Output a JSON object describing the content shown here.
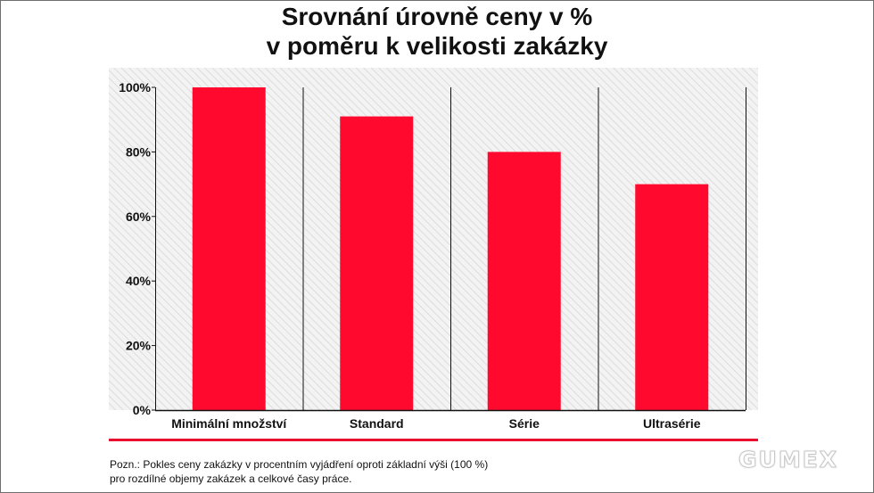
{
  "title": {
    "line1": "Srovnání úrovně ceny v %",
    "line2": "v poměru k velikosti zakázky"
  },
  "chart_data": {
    "type": "bar",
    "categories": [
      "Minimální množství",
      "Standard",
      "Série",
      "Ultrasérie"
    ],
    "values": [
      100,
      91,
      80,
      70
    ],
    "ylim": [
      0,
      100
    ],
    "yticks": [
      0,
      20,
      40,
      60,
      80,
      100
    ],
    "ytick_labels": [
      "0%",
      "20%",
      "40%",
      "60%",
      "80%",
      "100%"
    ],
    "bar_color": "#ff0a2e",
    "background": "hatched light gray",
    "grid": false,
    "legend": "none"
  },
  "note": {
    "line1": "Pozn.: Pokles ceny zakázky v procentním vyjádření oproti základní výši (100 %)",
    "line2": "pro rozdílné objemy zakázek a celkové časy práce."
  },
  "logo": {
    "text": "GUMEX"
  },
  "colors": {
    "accent": "#e8102e",
    "bar": "#ff0a2e",
    "text": "#111111"
  }
}
